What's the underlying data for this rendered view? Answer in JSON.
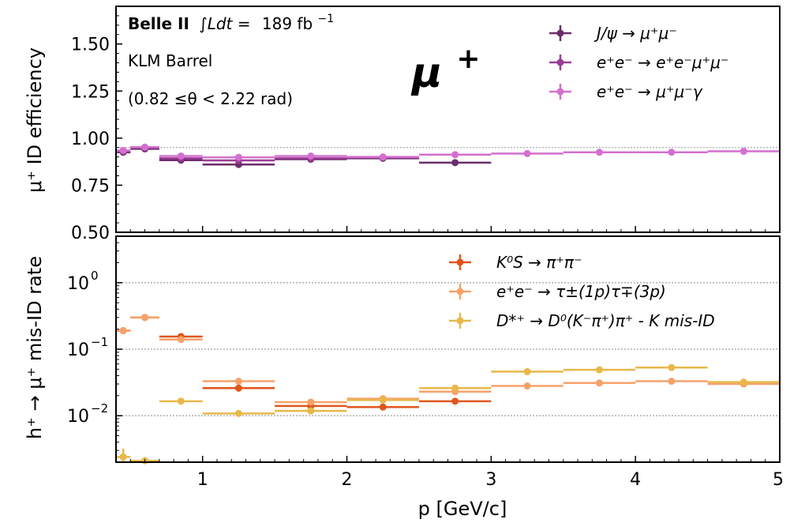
{
  "chart_data": [
    {
      "type": "scatter",
      "panel": "top",
      "ylabel": "μ⁺ ID efficiency",
      "ylim": [
        0.5,
        1.7
      ],
      "y_ticks": [
        0.5,
        0.75,
        1.0,
        1.25,
        1.5
      ],
      "y_tick_labels": [
        "0.50",
        "0.75",
        "1.00",
        "1.25",
        "1.50"
      ],
      "reference_line": 0.95,
      "grid": false,
      "legend_position": "top-right",
      "annotations": {
        "experiment": "Belle II",
        "luminosity_symbol": "∫Ldt =",
        "luminosity_value": "189 fb",
        "luminosity_exp": "−1",
        "detector": "KLM Barrel",
        "theta_range": "(0.82  ≤θ <  2.22 rad)",
        "particle_base": "μ",
        "particle_sup": "+"
      },
      "series": [
        {
          "name": "J/ψ → μ⁺μ⁻",
          "color": "#6b2d6b",
          "points": [
            {
              "x": 0.45,
              "x_lo": 0.4,
              "x_hi": 0.5,
              "y": 0.925,
              "err": 0.005
            },
            {
              "x": 0.6,
              "x_lo": 0.5,
              "x_hi": 0.7,
              "y": 0.943,
              "err": 0.005
            },
            {
              "x": 0.85,
              "x_lo": 0.7,
              "x_hi": 1.0,
              "y": 0.883,
              "err": 0.005
            },
            {
              "x": 1.25,
              "x_lo": 1.0,
              "x_hi": 1.5,
              "y": 0.86,
              "err": 0.01
            },
            {
              "x": 1.75,
              "x_lo": 1.5,
              "x_hi": 2.0,
              "y": 0.888,
              "err": 0.005
            },
            {
              "x": 2.25,
              "x_lo": 2.0,
              "x_hi": 2.5,
              "y": 0.893,
              "err": 0.005
            },
            {
              "x": 2.75,
              "x_lo": 2.5,
              "x_hi": 3.0,
              "y": 0.87,
              "err": 0.01
            }
          ]
        },
        {
          "name": "e⁺e⁻ → e⁺e⁻μ⁺μ⁻",
          "color": "#9b3b96",
          "points": [
            {
              "x": 0.45,
              "x_lo": 0.4,
              "x_hi": 0.5,
              "y": 0.93,
              "err": 0.005
            },
            {
              "x": 0.6,
              "x_lo": 0.5,
              "x_hi": 0.7,
              "y": 0.95,
              "err": 0.005
            },
            {
              "x": 0.85,
              "x_lo": 0.7,
              "x_hi": 1.0,
              "y": 0.893,
              "err": 0.005
            },
            {
              "x": 1.25,
              "x_lo": 1.0,
              "x_hi": 1.5,
              "y": 0.882,
              "err": 0.005
            },
            {
              "x": 1.75,
              "x_lo": 1.5,
              "x_hi": 2.0,
              "y": 0.893,
              "err": 0.005
            },
            {
              "x": 2.25,
              "x_lo": 2.0,
              "x_hi": 2.5,
              "y": 0.897,
              "err": 0.005
            }
          ]
        },
        {
          "name": "e⁺e⁻ → μ⁺μ⁻γ",
          "color": "#d46fcf",
          "points": [
            {
              "x": 0.45,
              "x_lo": 0.4,
              "x_hi": 0.5,
              "y": 0.935,
              "err": 0.005
            },
            {
              "x": 0.6,
              "x_lo": 0.5,
              "x_hi": 0.7,
              "y": 0.952,
              "err": 0.005
            },
            {
              "x": 0.85,
              "x_lo": 0.7,
              "x_hi": 1.0,
              "y": 0.905,
              "err": 0.005
            },
            {
              "x": 1.25,
              "x_lo": 1.0,
              "x_hi": 1.5,
              "y": 0.898,
              "err": 0.005
            },
            {
              "x": 1.75,
              "x_lo": 1.5,
              "x_hi": 2.0,
              "y": 0.905,
              "err": 0.005
            },
            {
              "x": 2.25,
              "x_lo": 2.0,
              "x_hi": 2.5,
              "y": 0.9,
              "err": 0.005
            },
            {
              "x": 2.75,
              "x_lo": 2.5,
              "x_hi": 3.0,
              "y": 0.912,
              "err": 0.005
            },
            {
              "x": 3.25,
              "x_lo": 3.0,
              "x_hi": 3.5,
              "y": 0.918,
              "err": 0.003
            },
            {
              "x": 3.75,
              "x_lo": 3.5,
              "x_hi": 4.0,
              "y": 0.925,
              "err": 0.003
            },
            {
              "x": 4.25,
              "x_lo": 4.0,
              "x_hi": 4.5,
              "y": 0.925,
              "err": 0.003
            },
            {
              "x": 4.75,
              "x_lo": 4.5,
              "x_hi": 5.0,
              "y": 0.93,
              "err": 0.003
            }
          ]
        }
      ]
    },
    {
      "type": "scatter",
      "panel": "bottom",
      "xlabel": "p [GeV/c]",
      "ylabel": "h⁺ → μ⁺ mis-ID rate",
      "xlim": [
        0.4,
        5.0
      ],
      "x_ticks": [
        1,
        2,
        3,
        4,
        5
      ],
      "x_tick_labels": [
        "1",
        "2",
        "3",
        "4",
        "5"
      ],
      "y_scale": "log",
      "ylim": [
        0.002,
        5.0
      ],
      "y_ticks": [
        0.01,
        0.1,
        1.0
      ],
      "y_tick_labels": [
        {
          "base": "10",
          "exp": "−2"
        },
        {
          "base": "10",
          "exp": "−1"
        },
        {
          "base": "10",
          "exp": "0"
        }
      ],
      "grid": "horizontal dotted at decades",
      "legend_position": "top-right",
      "series": [
        {
          "name": "K⁰S → π⁺π⁻",
          "color": "#e0561c",
          "points": [
            {
              "x": 0.45,
              "x_lo": 0.4,
              "x_hi": 0.5,
              "y": 0.19,
              "err": 0.01
            },
            {
              "x": 0.6,
              "x_lo": 0.5,
              "x_hi": 0.7,
              "y": 0.3,
              "err": 0.01
            },
            {
              "x": 0.85,
              "x_lo": 0.7,
              "x_hi": 1.0,
              "y": 0.155,
              "err": 0.01
            },
            {
              "x": 1.25,
              "x_lo": 1.0,
              "x_hi": 1.5,
              "y": 0.026,
              "err": 0.003
            },
            {
              "x": 1.75,
              "x_lo": 1.5,
              "x_hi": 2.0,
              "y": 0.014,
              "err": 0.001
            },
            {
              "x": 2.25,
              "x_lo": 2.0,
              "x_hi": 2.5,
              "y": 0.0135,
              "err": 0.001
            },
            {
              "x": 2.75,
              "x_lo": 2.5,
              "x_hi": 3.0,
              "y": 0.0165,
              "err": 0.001
            }
          ]
        },
        {
          "name": "e⁺e⁻ → τ±(1p)τ∓(3p)",
          "color": "#f5a26a",
          "points": [
            {
              "x": 0.45,
              "x_lo": 0.4,
              "x_hi": 0.5,
              "y": 0.19,
              "err": 0.01
            },
            {
              "x": 0.6,
              "x_lo": 0.5,
              "x_hi": 0.7,
              "y": 0.3,
              "err": 0.01
            },
            {
              "x": 0.85,
              "x_lo": 0.7,
              "x_hi": 1.0,
              "y": 0.14,
              "err": 0.01
            },
            {
              "x": 1.25,
              "x_lo": 1.0,
              "x_hi": 1.5,
              "y": 0.033,
              "err": 0.002
            },
            {
              "x": 1.75,
              "x_lo": 1.5,
              "x_hi": 2.0,
              "y": 0.016,
              "err": 0.001
            },
            {
              "x": 2.25,
              "x_lo": 2.0,
              "x_hi": 2.5,
              "y": 0.018,
              "err": 0.001
            },
            {
              "x": 2.75,
              "x_lo": 2.5,
              "x_hi": 3.0,
              "y": 0.023,
              "err": 0.001
            },
            {
              "x": 3.25,
              "x_lo": 3.0,
              "x_hi": 3.5,
              "y": 0.028,
              "err": 0.001
            },
            {
              "x": 3.75,
              "x_lo": 3.5,
              "x_hi": 4.0,
              "y": 0.031,
              "err": 0.001
            },
            {
              "x": 4.25,
              "x_lo": 4.0,
              "x_hi": 4.5,
              "y": 0.033,
              "err": 0.001
            },
            {
              "x": 4.75,
              "x_lo": 4.5,
              "x_hi": 5.0,
              "y": 0.03,
              "err": 0.001
            }
          ]
        },
        {
          "name": "D*⁺ → D⁰(K⁻π⁺)π⁺ - K mis-ID",
          "color": "#e8b84a",
          "points": [
            {
              "x": 0.45,
              "x_lo": 0.4,
              "x_hi": 0.5,
              "y": 0.0024,
              "err": 0.0008
            },
            {
              "x": 0.6,
              "x_lo": 0.5,
              "x_hi": 0.7,
              "y": 0.0021,
              "err": 0.0003
            },
            {
              "x": 0.85,
              "x_lo": 0.7,
              "x_hi": 1.0,
              "y": 0.0165,
              "err": 0.001
            },
            {
              "x": 1.25,
              "x_lo": 1.0,
              "x_hi": 1.5,
              "y": 0.0108,
              "err": 0.0005
            },
            {
              "x": 1.75,
              "x_lo": 1.5,
              "x_hi": 2.0,
              "y": 0.0118,
              "err": 0.0005
            },
            {
              "x": 2.25,
              "x_lo": 2.0,
              "x_hi": 2.5,
              "y": 0.0172,
              "err": 0.0008
            },
            {
              "x": 2.75,
              "x_lo": 2.5,
              "x_hi": 3.0,
              "y": 0.026,
              "err": 0.001
            },
            {
              "x": 3.25,
              "x_lo": 3.0,
              "x_hi": 3.5,
              "y": 0.046,
              "err": 0.002
            },
            {
              "x": 3.75,
              "x_lo": 3.5,
              "x_hi": 4.0,
              "y": 0.049,
              "err": 0.002
            },
            {
              "x": 4.25,
              "x_lo": 4.0,
              "x_hi": 4.5,
              "y": 0.053,
              "err": 0.002
            },
            {
              "x": 4.75,
              "x_lo": 4.5,
              "x_hi": 5.0,
              "y": 0.032,
              "err": 0.002
            }
          ]
        }
      ]
    }
  ]
}
